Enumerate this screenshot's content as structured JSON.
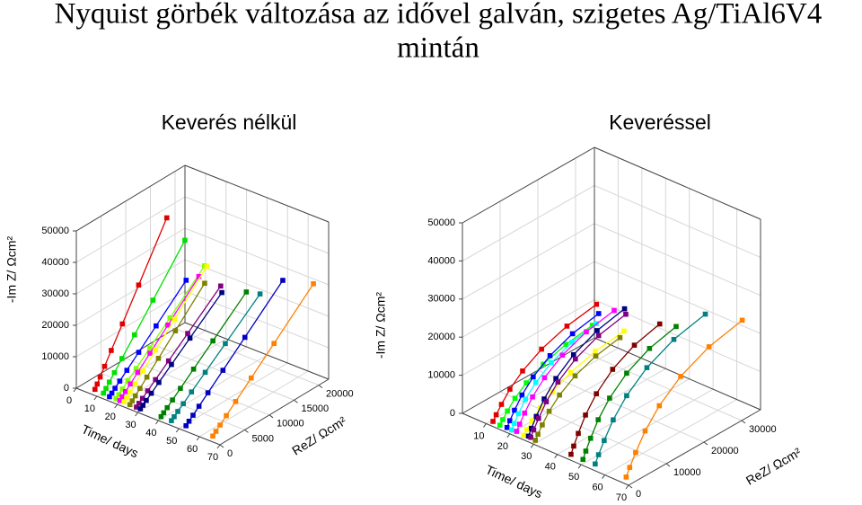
{
  "title": [
    "Nyquist görbék változása az idővel galván, szigetes Ag/TiAl6V4",
    "mintán"
  ],
  "chart_data": [
    {
      "type": "line3d",
      "title": "Keverés nélkül",
      "xlabel": "ReZ/ Ωcm²",
      "ylabel": "-Im Z/ Ωcm²",
      "zlabel": "Time/ days",
      "xlim": [
        0,
        22000
      ],
      "xticks": [
        0,
        5000,
        10000,
        15000,
        20000
      ],
      "ylim": [
        0,
        50000
      ],
      "yticks": [
        0,
        10000,
        20000,
        30000,
        40000,
        50000
      ],
      "zlim": [
        0,
        70
      ],
      "zticks": [
        0,
        10,
        20,
        30,
        40,
        50,
        60,
        70
      ],
      "grid": true,
      "series": [
        {
          "color": "#e00000",
          "time": 8,
          "re": [
            450,
            900,
            1500,
            2400,
            3750,
            6000,
            9300,
            15000
          ],
          "im": [
            1260,
            2520,
            4200,
            6720,
            10500,
            16800,
            26040,
            42000
          ]
        },
        {
          "color": "#00e000",
          "time": 12,
          "re": [
            510,
            1020,
            1700,
            2720,
            4250,
            6800,
            10540,
            17000
          ],
          "im": [
            1020,
            2040,
            3400,
            5440,
            8500,
            13600,
            21080,
            34000
          ]
        },
        {
          "color": "#0000ff",
          "time": 15,
          "re": [
            480,
            960,
            1600,
            2560,
            4000,
            6400,
            9920,
            16000
          ],
          "im": [
            690,
            1380,
            2300,
            3680,
            5750,
            9200,
            14260,
            23000
          ]
        },
        {
          "color": "#80ff00",
          "time": 18,
          "re": [
            555,
            1110,
            1850,
            2960,
            4625,
            7400,
            11470,
            18500
          ],
          "im": [
            780,
            1560,
            2600,
            4160,
            6500,
            10400,
            16120,
            26000
          ]
        },
        {
          "color": "#ff00ff",
          "time": 20,
          "re": [
            495,
            990,
            1650,
            2640,
            4125,
            6600,
            10230,
            16500
          ],
          "im": [
            750,
            1500,
            2500,
            4000,
            6250,
            10000,
            15500,
            25000
          ]
        },
        {
          "color": "#ffff00",
          "time": 22,
          "re": [
            519,
            1038,
            1730,
            2768,
            4325,
            6920,
            10726,
            17300
          ],
          "im": [
            840,
            1680,
            2800,
            4480,
            7000,
            11200,
            17360,
            28000
          ]
        },
        {
          "color": "#808000",
          "time": 25,
          "re": [
            468,
            936,
            1560,
            2496,
            3900,
            6240,
            9672,
            15600
          ],
          "im": [
            750,
            1500,
            2500,
            4000,
            6250,
            10000,
            15500,
            25000
          ]
        },
        {
          "color": "#800080",
          "time": 28,
          "re": [
            528,
            1056,
            1760,
            2816,
            4400,
            7040,
            10912,
            17600
          ],
          "im": [
            690,
            1380,
            2300,
            3680,
            5750,
            9200,
            14260,
            23000
          ]
        },
        {
          "color": "#000080",
          "time": 30,
          "re": [
            510,
            1020,
            1700,
            2720,
            4250,
            6800,
            10540,
            17000
          ],
          "im": [
            660,
            1320,
            2200,
            3520,
            5500,
            8800,
            13640,
            22000
          ]
        },
        {
          "color": "#008000",
          "time": 40,
          "re": [
            534,
            1068,
            1780,
            2848,
            4450,
            7120,
            11036,
            17800
          ],
          "im": [
            720,
            1440,
            2400,
            3840,
            6000,
            9600,
            14880,
            24000
          ]
        },
        {
          "color": "#008080",
          "time": 45,
          "re": [
            555,
            1110,
            1850,
            2960,
            4625,
            7400,
            11470,
            18500
          ],
          "im": [
            720,
            1440,
            2400,
            3840,
            6000,
            9600,
            14880,
            24000
          ]
        },
        {
          "color": "#0000c0",
          "time": 52,
          "re": [
            606,
            1212,
            2020,
            3232,
            5050,
            8080,
            12524,
            20200
          ],
          "im": [
            855,
            1710,
            2850,
            4560,
            7125,
            11400,
            17670,
            28500
          ]
        },
        {
          "color": "#ff8000",
          "time": 65,
          "re": [
            630,
            1260,
            2100,
            3360,
            5250,
            8400,
            13020,
            21000
          ],
          "im": [
            900,
            1800,
            3000,
            4800,
            7500,
            12000,
            18600,
            30000
          ]
        }
      ]
    },
    {
      "type": "line3d",
      "title": "Keveréssel",
      "xlabel": "ReZ/ Ωcm²",
      "ylabel": "-Im Z/ Ωcm²",
      "zlabel": "Time/ days",
      "xlim": [
        0,
        35000
      ],
      "xticks": [
        0,
        10000,
        20000,
        30000
      ],
      "ylim": [
        0,
        50000
      ],
      "yticks": [
        0,
        10000,
        20000,
        30000,
        40000,
        50000
      ],
      "zlim": [
        0,
        70
      ],
      "zticks": [
        10,
        20,
        30,
        40,
        50,
        60,
        70
      ],
      "grid": true,
      "series": [
        {
          "color": "#e00000",
          "time": 12,
          "re": [
            560,
            1400,
            2800,
            5040,
            8400,
            13440,
            20160,
            28000
          ],
          "im": [
            800,
            2080,
            4000,
            6720,
            9600,
            12480,
            14720,
            16000
          ]
        },
        {
          "color": "#00ff00",
          "time": 15,
          "re": [
            500,
            1250,
            2500,
            4500,
            7500,
            12000,
            18000,
            25000
          ],
          "im": [
            650,
            1690,
            3250,
            5460,
            7800,
            10140,
            11960,
            13000
          ]
        },
        {
          "color": "#0000ff",
          "time": 18,
          "re": [
            496,
            1240,
            2480,
            4464,
            7440,
            11904,
            17856,
            24800
          ],
          "im": [
            850,
            2210,
            4250,
            7140,
            10200,
            13260,
            15640,
            17000
          ]
        },
        {
          "color": "#00ffff",
          "time": 20,
          "re": [
            458,
            1145,
            2290,
            4122,
            6870,
            10992,
            16488,
            22900
          ],
          "im": [
            800,
            2080,
            4000,
            6720,
            9600,
            12480,
            14720,
            16000
          ]
        },
        {
          "color": "#ff00ff",
          "time": 22,
          "re": [
            528,
            1320,
            2640,
            4752,
            7920,
            12672,
            19008,
            26400
          ],
          "im": [
            900,
            2340,
            4500,
            7560,
            10800,
            14040,
            16560,
            18000
          ]
        },
        {
          "color": "#ffff00",
          "time": 25,
          "re": [
            542,
            1355,
            2710,
            4878,
            8130,
            13008,
            19512,
            27100
          ],
          "im": [
            650,
            1690,
            3250,
            5460,
            7800,
            10140,
            11960,
            13000
          ]
        },
        {
          "color": "#000080",
          "time": 27,
          "re": [
            520,
            1300,
            2600,
            4680,
            7800,
            12480,
            18720,
            26000
          ],
          "im": [
            1000,
            2600,
            5000,
            8400,
            12000,
            15600,
            18400,
            20000
          ]
        },
        {
          "color": "#800080",
          "time": 28,
          "re": [
            514,
            1285,
            2570,
            4626,
            7710,
            12336,
            18504,
            25700
          ],
          "im": [
            950,
            2470,
            4750,
            7980,
            11400,
            14820,
            17480,
            19000
          ]
        },
        {
          "color": "#808000",
          "time": 30,
          "re": [
            458,
            1145,
            2290,
            4122,
            6870,
            10992,
            16488,
            22900
          ],
          "im": [
            750,
            1950,
            3750,
            6300,
            9000,
            11700,
            13800,
            15000
          ]
        },
        {
          "color": "#800000",
          "time": 45,
          "re": [
            480,
            1200,
            2400,
            4320,
            7200,
            11520,
            17280,
            24000
          ],
          "im": [
            1100,
            2860,
            5500,
            9240,
            13200,
            17160,
            20240,
            22000
          ]
        },
        {
          "color": "#008000",
          "time": 50,
          "re": [
            504,
            1260,
            2520,
            4536,
            7560,
            12096,
            18144,
            25200
          ],
          "im": [
            1100,
            2860,
            5500,
            9240,
            13200,
            17160,
            20240,
            22000
          ]
        },
        {
          "color": "#008080",
          "time": 55,
          "re": [
            596,
            1490,
            2980,
            5364,
            8940,
            14304,
            21456,
            29800
          ],
          "im": [
            1200,
            3120,
            6000,
            10080,
            14400,
            18720,
            22080,
            24000
          ]
        },
        {
          "color": "#ff8000",
          "time": 68,
          "re": [
            628,
            1570,
            3140,
            5652,
            9420,
            15072,
            22608,
            31400
          ],
          "im": [
            1250,
            3250,
            6250,
            10500,
            15000,
            19500,
            23000,
            25000
          ]
        }
      ]
    }
  ]
}
